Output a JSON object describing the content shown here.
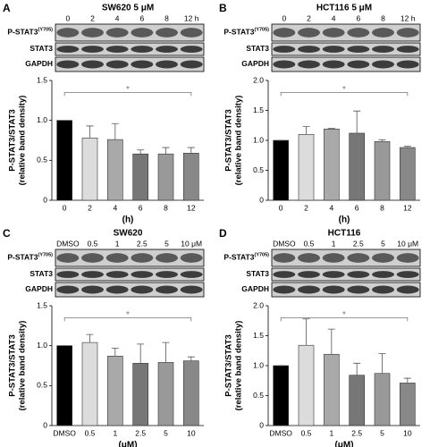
{
  "chart_data": [
    {
      "type": "bar",
      "panel": "A",
      "title": "SW620 5 μM",
      "lanes": [
        "0",
        "2",
        "4",
        "6",
        "8",
        "12 h"
      ],
      "blot_rows": [
        {
          "name": "P-STAT3",
          "sup": "(Y705)"
        },
        {
          "name": "STAT3"
        },
        {
          "name": "GAPDH"
        }
      ],
      "categories": [
        "0",
        "2",
        "4",
        "6",
        "8",
        "12"
      ],
      "values": [
        1.0,
        0.78,
        0.76,
        0.58,
        0.58,
        0.59
      ],
      "errors": [
        0,
        0.15,
        0.2,
        0.05,
        0.08,
        0.07
      ],
      "colors": [
        "#000000",
        "#dcdcdc",
        "#a9a9a9",
        "#777777",
        "#999999",
        "#888888"
      ],
      "ylim": [
        0,
        1.5
      ],
      "yticks": [
        0,
        0.5,
        {
          "value": 1,
          "label": "1.0"
        },
        1.5
      ],
      "ylabel": [
        "P-STAT3/STAT3",
        "(relative band density)"
      ],
      "xlabel": "(h)",
      "annotation": "*"
    },
    {
      "type": "bar",
      "panel": "B",
      "title": "HCT116 5 μM",
      "lanes": [
        "0",
        "2",
        "4",
        "6",
        "8",
        "12 h"
      ],
      "blot_rows": [
        {
          "name": "P-STAT3",
          "sup": "(Y705)"
        },
        {
          "name": "STAT3"
        },
        {
          "name": "GAPDH"
        }
      ],
      "categories": [
        "0",
        "2",
        "4",
        "6",
        "8",
        "12"
      ],
      "values": [
        1.0,
        1.1,
        1.19,
        1.12,
        0.98,
        0.88
      ],
      "errors": [
        0,
        0.13,
        0.01,
        0.37,
        0.03,
        0.02
      ],
      "colors": [
        "#000000",
        "#dcdcdc",
        "#a9a9a9",
        "#777777",
        "#999999",
        "#888888"
      ],
      "ylim": [
        0,
        2
      ],
      "yticks": [
        0,
        0.5,
        {
          "value": 1,
          "label": "1.0"
        },
        1.5,
        {
          "value": 2,
          "label": "2.0"
        }
      ],
      "ylabel": [
        "P-STAT3/STAT3",
        "(relative band density)"
      ],
      "xlabel": "(h)",
      "annotation": "*"
    },
    {
      "type": "bar",
      "panel": "C",
      "title": "SW620",
      "lanes": [
        "DMSO",
        "0.5",
        "1",
        "2.5",
        "5",
        "10 μM"
      ],
      "blot_rows": [
        {
          "name": "P-STAT3",
          "sup": "(Y705)"
        },
        {
          "name": "STAT3"
        },
        {
          "name": "GAPDH"
        }
      ],
      "categories": [
        "DMSO",
        "0.5",
        "1",
        "2.5",
        "5",
        "10"
      ],
      "values": [
        1.0,
        1.04,
        0.87,
        0.78,
        0.79,
        0.81
      ],
      "errors": [
        0,
        0.1,
        0.1,
        0.24,
        0.25,
        0.05
      ],
      "colors": [
        "#000000",
        "#dcdcdc",
        "#a9a9a9",
        "#777777",
        "#999999",
        "#888888"
      ],
      "ylim": [
        0,
        1.5
      ],
      "yticks": [
        0,
        0.5,
        {
          "value": 1,
          "label": "1.0"
        },
        1.5
      ],
      "ylabel": [
        "P-STAT3/STAT3",
        "(relative band density)"
      ],
      "xlabel": "(μM)",
      "annotation": "*"
    },
    {
      "type": "bar",
      "panel": "D",
      "title": "HCT116",
      "lanes": [
        "DMSO",
        "0.5",
        "1",
        "2.5",
        "5",
        "10 μM"
      ],
      "blot_rows": [
        {
          "name": "P-STAT3",
          "sup": "(Y705)"
        },
        {
          "name": "STAT3"
        },
        {
          "name": "GAPDH"
        }
      ],
      "categories": [
        "DMSO",
        "0.5",
        "1",
        "2.5",
        "5",
        "10"
      ],
      "values": [
        1.0,
        1.34,
        1.19,
        0.84,
        0.87,
        0.71
      ],
      "errors": [
        0,
        0.44,
        0.42,
        0.2,
        0.33,
        0.08
      ],
      "colors": [
        "#000000",
        "#dcdcdc",
        "#a9a9a9",
        "#777777",
        "#999999",
        "#888888"
      ],
      "ylim": [
        0,
        2
      ],
      "yticks": [
        0,
        0.5,
        {
          "value": 1,
          "label": "1.0"
        },
        1.5,
        {
          "value": 2,
          "label": "2.0"
        }
      ],
      "ylabel": [
        "P-STAT3/STAT3",
        "(relative band density)"
      ],
      "xlabel": "(μM)",
      "annotation": "*"
    }
  ]
}
